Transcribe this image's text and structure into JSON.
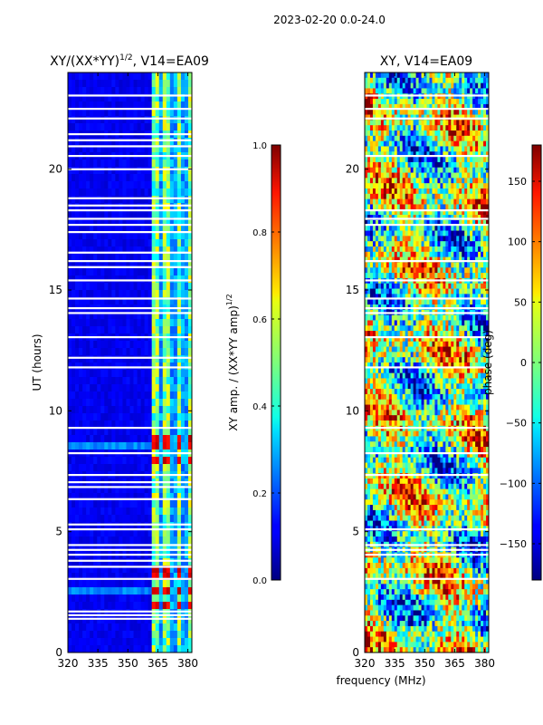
{
  "figure_title": "2023-02-20 0.0-24.0",
  "chart_data": [
    {
      "type": "heatmap",
      "title": "XY/(XX*YY)",
      "title_superscript": "1/2",
      "title_suffix": ", V14=EA09",
      "xlabel": "",
      "ylabel": "UT (hours)",
      "xlim": [
        320,
        382
      ],
      "ylim": [
        0,
        24
      ],
      "xticks": [
        320,
        335,
        350,
        365,
        380
      ],
      "yticks": [
        0,
        5,
        10,
        15,
        20
      ],
      "colorbar": {
        "label": "XY amp. / (XX*YY amp)",
        "label_superscript": "1/2",
        "range": [
          0.0,
          1.0
        ],
        "ticks": [
          "0.0",
          "0.2",
          "0.4",
          "0.6",
          "0.8",
          "1.0"
        ],
        "colormap": "jet"
      },
      "flagged_hours": [
        1.4,
        1.55,
        1.7,
        3.05,
        3.55,
        3.8,
        4.05,
        4.25,
        4.45,
        5.1,
        5.3,
        6.35,
        6.85,
        7.05,
        7.35,
        8.25,
        9.3,
        11.8,
        12.2,
        13.05,
        14.05,
        14.25,
        14.65,
        15.4,
        15.95,
        16.2,
        16.55,
        17.4,
        17.7,
        17.95,
        18.3,
        18.5,
        18.8,
        20.0,
        20.55,
        20.95,
        21.2,
        21.45,
        22.1,
        22.5,
        23.05
      ],
      "notable_bright_hours": [
        2.0,
        2.5,
        3.2,
        7.9,
        8.5,
        8.8
      ],
      "bright_frequencies_mhz": [
        365,
        370,
        375,
        380
      ]
    },
    {
      "type": "heatmap",
      "title": "XY, V14=EA09",
      "xlabel": "",
      "ylabel": "",
      "xlim": [
        320,
        382
      ],
      "ylim": [
        0,
        24
      ],
      "xticks": [
        320,
        335,
        350,
        365,
        380
      ],
      "yticks": [
        0,
        5,
        10,
        15,
        20
      ],
      "colorbar": {
        "label": "phase (deg)",
        "range": [
          -180,
          180
        ],
        "ticks": [
          "−150",
          "−100",
          "−50",
          "0",
          "50",
          "100",
          "150"
        ],
        "colormap": "jet"
      },
      "flagged_hours": [
        3.05,
        4.05,
        4.25,
        4.45,
        5.1,
        7.35,
        8.25,
        9.3,
        11.8,
        13.05,
        14.05,
        14.25,
        14.65,
        15.4,
        16.2,
        17.7,
        17.95,
        18.3,
        20.55,
        22.1,
        22.5,
        23.05
      ]
    }
  ],
  "shared_xlabel": "frequency (MHz)"
}
